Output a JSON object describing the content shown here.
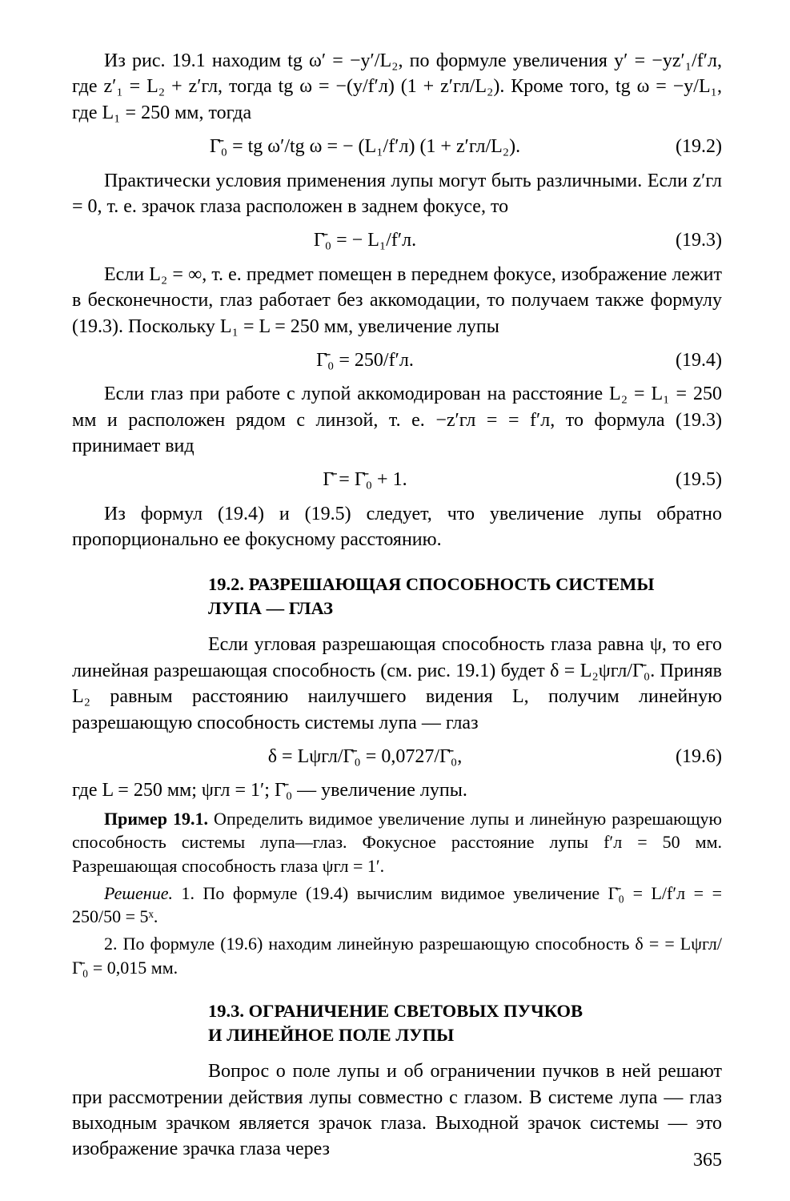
{
  "p1": "Из рис. 19.1 находим tg ω′ = −y′/L₂, по формуле увеличения y′ = −yz′₁/f′л, где z′₁ = L₂ + z′гл, тогда tg ω = −(y/f′л) (1 + z′гл/L₂). Кроме того, tg ω = −y/L₁, где L₁ = 250 мм, тогда",
  "f1_text": "Γ̄₀ = tg ω′/tg ω = − (L₁/f′л) (1 + z′гл/L₂).",
  "f1_num": "(19.2)",
  "p2": "Практически условия применения лупы могут быть различными. Если z′гл = 0, т. е. зрачок глаза расположен в заднем фокусе, то",
  "f2_text": "Γ̄₀ = − L₁/f′л.",
  "f2_num": "(19.3)",
  "p3": "Если L₂ = ∞, т. е. предмет помещен в переднем фокусе, изображение лежит в бесконечности, глаз работает без аккомодации, то получаем также формулу (19.3). Поскольку L₁ = L = 250 мм, увеличение лупы",
  "f3_text": "Γ̄₀ = 250/f′л.",
  "f3_num": "(19.4)",
  "p4": "Если глаз при работе с лупой аккомодирован на расстояние L₂ = L₁ = 250 мм и расположен рядом с линзой, т. е. −z′гл = = f′л, то формула (19.3) принимает вид",
  "f4_text": "Γ̄ = Γ̄₀ + 1.",
  "f4_num": "(19.5)",
  "p5": "Из формул (19.4) и (19.5) следует, что увеличение лупы обратно пропорционально ее фокусному расстоянию.",
  "h1_l1": "19.2. РАЗРЕШАЮЩАЯ СПОСОБНОСТЬ СИСТЕМЫ",
  "h1_l2": "ЛУПА — ГЛАЗ",
  "p6": "Если угловая разрешающая способность глаза равна ψ, то его линейная разрешающая способность (см. рис. 19.1) будет δ = L₂ψгл/Γ̄₀. Приняв L₂ равным расстоянию наилучшего видения L, получим линейную разрешающую способность системы лупа — глаз",
  "f5_text": "δ = Lψгл/Γ̄₀ = 0,0727/Γ̄₀,",
  "f5_num": "(19.6)",
  "p7": "где L = 250 мм; ψгл = 1′; Γ̄₀ — увеличение лупы.",
  "p8a": "Пример 19.1.",
  "p8b": " Определить видимое увеличение лупы и линейную разрешающую способность системы лупа—глаз. Фокусное расстояние лупы f′л = 50 мм. Разрешающая способность глаза ψгл = 1′.",
  "p9a": "Решение.",
  "p9b": " 1. По формуле (19.4) вычислим видимое увеличение Γ̄₀ = L/f′л = = 250/50 = 5ˣ.",
  "p10": "2. По формуле (19.6) находим линейную разрешающую способность δ = = Lψгл/Γ̄₀ = 0,015 мм.",
  "h2_l1": "19.3. ОГРАНИЧЕНИЕ СВЕТОВЫХ ПУЧКОВ",
  "h2_l2": "И ЛИНЕЙНОЕ ПОЛЕ ЛУПЫ",
  "p11": "Вопрос о поле лупы и об ограничении пучков в ней решают при рассмотрении действия лупы совместно с глазом. В системе лупа — глаз выходным зрачком является зрачок глаза. Выходной зрачок системы — это изображение зрачка глаза через",
  "page_number": "365"
}
